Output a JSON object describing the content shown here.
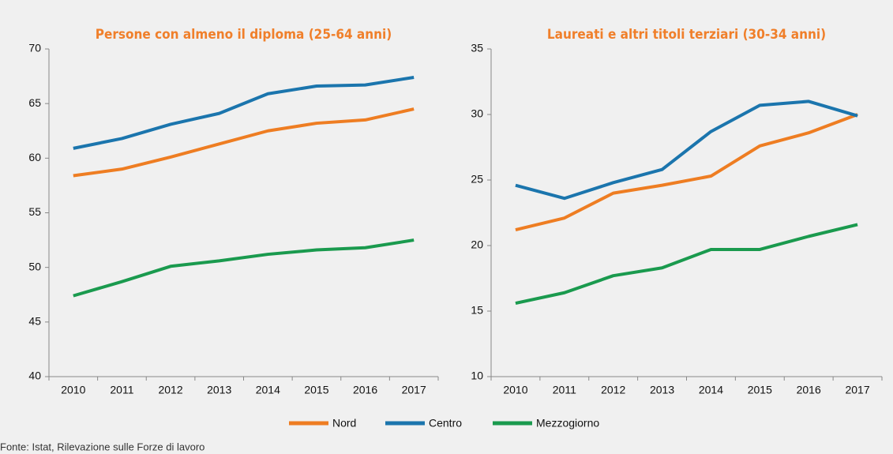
{
  "chart_data": [
    {
      "type": "line",
      "title": "Persone con almeno il diploma (25-64 anni)",
      "categories": [
        "2010",
        "2011",
        "2012",
        "2013",
        "2014",
        "2015",
        "2016",
        "2017"
      ],
      "ylim": [
        40,
        70
      ],
      "yticks": [
        40,
        45,
        50,
        55,
        60,
        65,
        70
      ],
      "series": [
        {
          "name": "Nord",
          "color": "#ee7d22",
          "values": [
            58.4,
            59.0,
            60.1,
            61.3,
            62.5,
            63.2,
            63.5,
            64.5
          ]
        },
        {
          "name": "Centro",
          "color": "#1b75ad",
          "values": [
            60.9,
            61.8,
            63.1,
            64.1,
            65.9,
            66.6,
            66.7,
            67.4
          ]
        },
        {
          "name": "Mezzogiorno",
          "color": "#1a9a4e",
          "values": [
            47.4,
            48.7,
            50.1,
            50.6,
            51.2,
            51.6,
            51.8,
            52.5
          ]
        }
      ]
    },
    {
      "type": "line",
      "title": "Laureati e altri titoli terziari (30-34 anni)",
      "categories": [
        "2010",
        "2011",
        "2012",
        "2013",
        "2014",
        "2015",
        "2016",
        "2017"
      ],
      "ylim": [
        10,
        35
      ],
      "yticks": [
        10,
        15,
        20,
        25,
        30,
        35
      ],
      "series": [
        {
          "color": "#ee7d22",
          "values": [
            21.2,
            22.1,
            24.0,
            24.6,
            25.3,
            27.6,
            28.6,
            30.0
          ]
        },
        {
          "color": "#1b75ad",
          "values": [
            24.6,
            23.6,
            24.8,
            25.8,
            28.7,
            30.7,
            31.0,
            29.9
          ]
        },
        {
          "color": "#1a9a4e",
          "values": [
            15.6,
            16.4,
            17.7,
            18.3,
            19.7,
            19.7,
            20.7,
            21.6
          ]
        }
      ]
    }
  ],
  "source": "Fonte: Istat, Rilevazione sulle Forze di lavoro"
}
